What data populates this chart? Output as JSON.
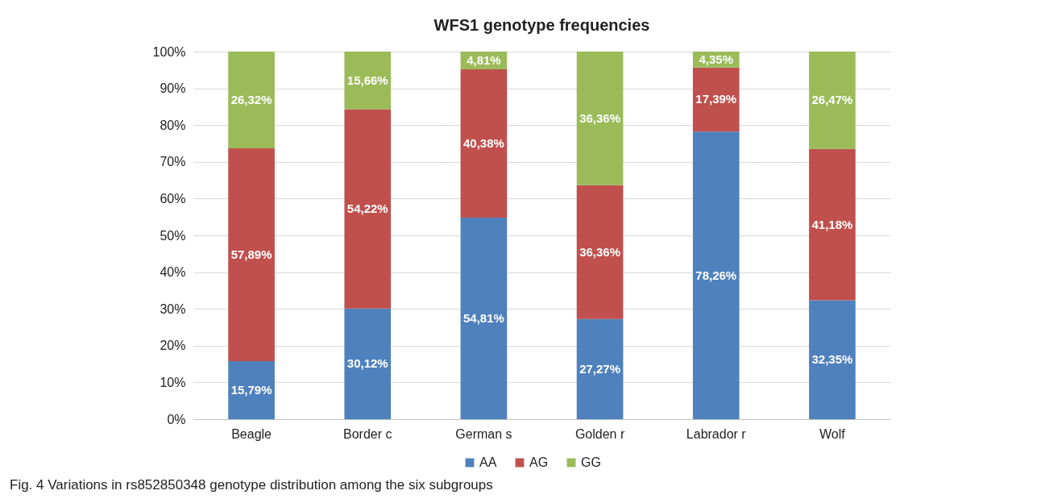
{
  "chart_data": {
    "type": "bar",
    "title": "WFS1 genotype frequencies",
    "stacked": true,
    "categories": [
      "Beagle",
      "Border c",
      "German s",
      "Golden r",
      "Labrador r",
      "Wolf"
    ],
    "series": [
      {
        "name": "AA",
        "color": "#4f81bd",
        "values": [
          15.79,
          30.12,
          54.81,
          27.27,
          78.26,
          32.35
        ],
        "value_labels": [
          "15,79%",
          "30,12%",
          "54,81%",
          "27,27%",
          "78,26%",
          "32,35%"
        ]
      },
      {
        "name": "AG",
        "color": "#c0504d",
        "values": [
          57.89,
          54.22,
          40.38,
          36.36,
          17.39,
          41.18
        ],
        "value_labels": [
          "57,89%",
          "54,22%",
          "40,38%",
          "36,36%",
          "17,39%",
          "41,18%"
        ]
      },
      {
        "name": "GG",
        "color": "#9bbb59",
        "values": [
          26.32,
          15.66,
          4.81,
          36.36,
          4.35,
          26.47
        ],
        "value_labels": [
          "26,32%",
          "15,66%",
          "4,81%",
          "36,36%",
          "4,35%",
          "26,47%"
        ]
      }
    ],
    "ylim": [
      0,
      100
    ],
    "yticks": [
      {
        "value": 0,
        "label": "0%"
      },
      {
        "value": 10,
        "label": "10%"
      },
      {
        "value": 20,
        "label": "20%"
      },
      {
        "value": 30,
        "label": "30%"
      },
      {
        "value": 40,
        "label": "40%"
      },
      {
        "value": 50,
        "label": "50%"
      },
      {
        "value": 60,
        "label": "60%"
      },
      {
        "value": 70,
        "label": "70%"
      },
      {
        "value": 80,
        "label": "80%"
      },
      {
        "value": 90,
        "label": "90%"
      },
      {
        "value": 100,
        "label": "100%"
      }
    ],
    "grid": "y",
    "legend": "bottom",
    "annotations": [
      "Fig. 4 Variations in rs852850348 genotype distribution among the six subgroups"
    ]
  }
}
